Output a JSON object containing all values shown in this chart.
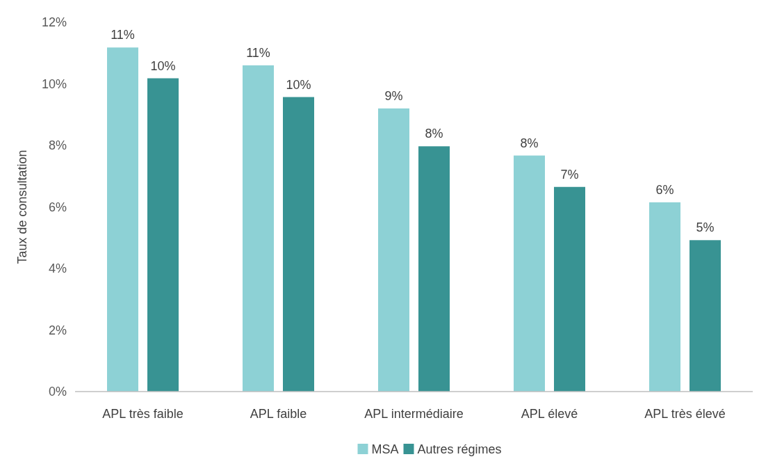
{
  "chart_data": {
    "type": "bar",
    "ylabel": "Taux de consultation",
    "categories": [
      "APL très faible",
      "APL faible",
      "APL intermédiaire",
      "APL élevé",
      "APL très élevé"
    ],
    "series": [
      {
        "name": "MSA",
        "color": "#8dd1d5",
        "values": [
          11.18,
          10.6,
          9.2,
          7.67,
          6.15
        ],
        "value_labels": [
          "11%",
          "11%",
          "9%",
          "8%",
          "6%"
        ]
      },
      {
        "name": "Autres régimes",
        "color": "#389393",
        "values": [
          10.18,
          9.57,
          7.97,
          6.65,
          4.92
        ],
        "value_labels": [
          "10%",
          "10%",
          "8%",
          "7%",
          "5%"
        ]
      }
    ],
    "ylim": [
      0,
      12
    ],
    "yticks": [
      {
        "value": 0,
        "label": "0%"
      },
      {
        "value": 2,
        "label": "2%"
      },
      {
        "value": 4,
        "label": "4%"
      },
      {
        "value": 6,
        "label": "6%"
      },
      {
        "value": 8,
        "label": "8%"
      },
      {
        "value": 10,
        "label": "10%"
      },
      {
        "value": 12,
        "label": "12%"
      }
    ],
    "grid": false,
    "legend": "bottom"
  }
}
